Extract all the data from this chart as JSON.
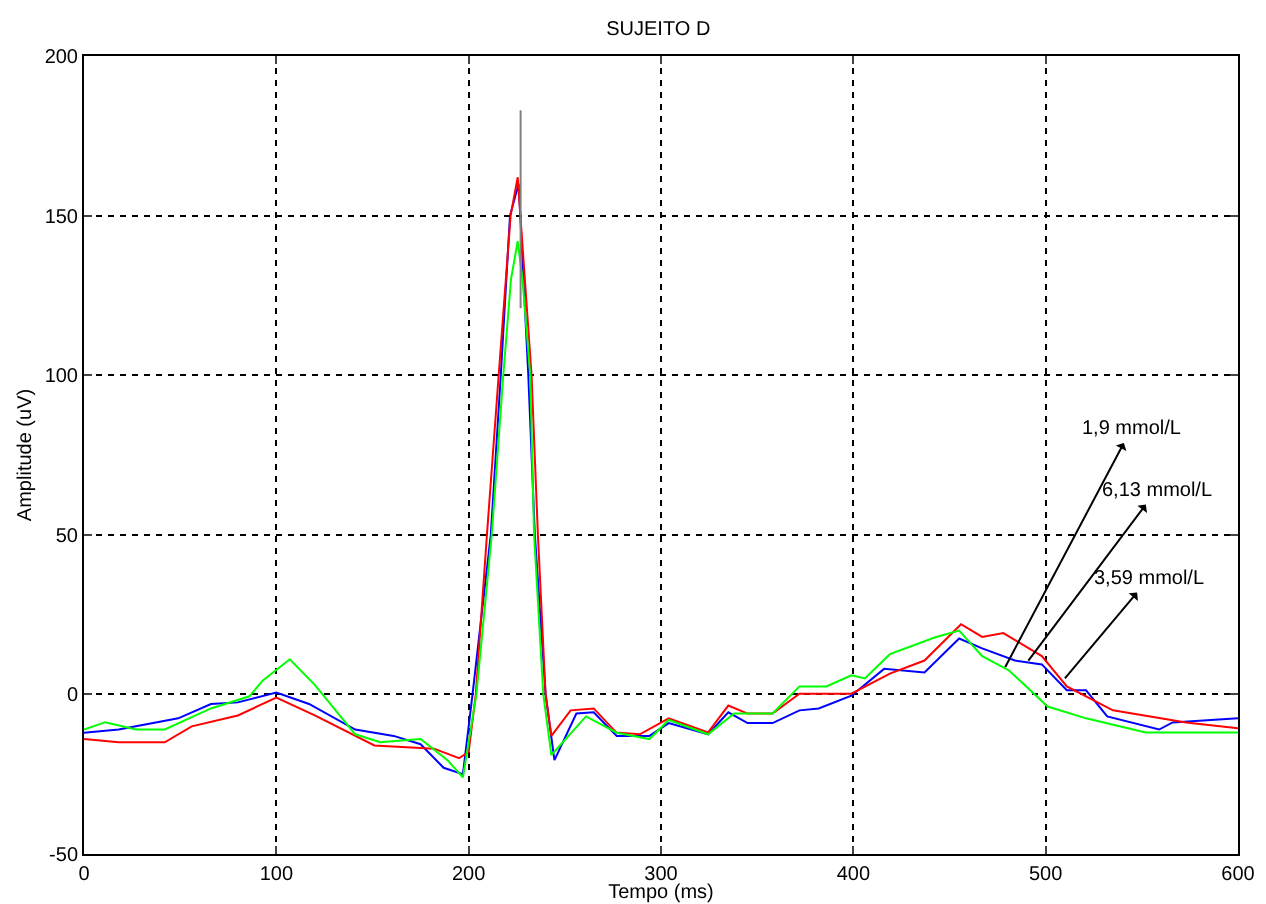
{
  "chart_data": {
    "type": "line",
    "title": "SUJEITO D",
    "xlabel": "Tempo (ms)",
    "ylabel": "Amplitude (uV)",
    "xlim": [
      0,
      600
    ],
    "xticks": [
      0,
      100,
      200,
      300,
      400,
      500,
      600
    ],
    "ylim": [
      -50,
      200
    ],
    "yticks": [
      -50,
      0,
      50,
      100,
      150,
      200
    ],
    "grid": true,
    "line_style": "solid",
    "marker": "none",
    "series": [
      {
        "color": "#0000ff",
        "x": [
          0,
          18,
          49,
          66,
          80,
          100,
          117,
          141,
          161,
          175,
          187,
          197,
          202,
          211.5,
          216.7,
          221.5,
          226,
          231,
          234.4,
          240,
          244.6,
          256,
          265,
          277,
          294,
          304,
          324.5,
          335,
          345,
          358,
          372,
          382,
          399,
          416,
          437,
          455,
          467,
          484,
          498,
          511,
          521,
          532,
          559,
          566,
          600
        ],
        "values": [
          -12,
          -11,
          -7.5,
          -3,
          -2.5,
          0.6,
          -3,
          -11,
          -13,
          -15.6,
          -23,
          -25,
          0,
          50,
          100,
          150,
          160,
          100,
          50,
          0,
          -20.6,
          -6,
          -5.6,
          -13,
          -13,
          -9,
          -12.5,
          -5.6,
          -9,
          -9,
          -5,
          -4.4,
          -0.4,
          8,
          6.9,
          17.5,
          14.4,
          10.6,
          9.4,
          1.3,
          1.3,
          -6.9,
          -11,
          -8.8,
          -7.5
        ]
      },
      {
        "color": "#ff0000",
        "x": [
          0,
          18,
          42,
          56,
          80,
          100,
          120,
          151,
          182,
          195,
          200,
          203.7,
          209.5,
          215.6,
          221.8,
          225.5,
          232.7,
          236,
          240,
          243,
          253,
          265,
          276.7,
          289,
          304,
          324.5,
          335,
          345,
          358,
          372,
          399,
          419,
          437,
          456,
          467,
          478,
          498,
          511,
          535,
          573,
          600
        ],
        "values": [
          -14,
          -15,
          -15,
          -10,
          -6.6,
          -1,
          -6.6,
          -16,
          -17,
          -20,
          -18,
          0,
          50,
          100,
          150,
          162,
          100,
          50,
          0,
          -13,
          -5,
          -4.4,
          -11.9,
          -12.5,
          -7.5,
          -11.9,
          -3.5,
          -6,
          -6,
          0.2,
          0.2,
          6.5,
          10.6,
          22,
          18,
          19.2,
          12,
          2.5,
          -5,
          -8.8,
          -10.6
        ]
      },
      {
        "color": "#00ff00",
        "x": [
          0,
          11,
          27,
          42,
          66,
          86,
          93,
          107,
          120,
          141,
          154,
          175,
          189,
          197,
          204,
          212,
          218,
          222,
          225.5,
          228,
          232,
          234,
          238.8,
          243,
          261,
          277,
          294,
          304,
          324.5,
          338,
          358,
          372,
          386,
          399,
          406,
          419,
          443,
          455,
          467,
          481,
          501,
          521,
          552,
          600
        ],
        "values": [
          -11,
          -8.7,
          -11,
          -11,
          -4.4,
          -0.6,
          4.4,
          11,
          3,
          -12.5,
          -15,
          -14,
          -20.6,
          -26,
          0,
          50,
          100,
          130,
          142,
          130,
          100,
          50,
          0,
          -19,
          -6.9,
          -12,
          -14,
          -8,
          -12.5,
          -6,
          -6,
          2.5,
          2.5,
          6,
          5,
          12.6,
          18,
          20,
          12,
          7.5,
          -3.8,
          -7.5,
          -11.9,
          -11.9
        ]
      },
      {
        "color": "#808080",
        "x": [
          227,
          227
        ],
        "values": [
          121,
          183
        ]
      }
    ],
    "annotations": [
      {
        "text": "1,9 mmol/L",
        "x": 479,
        "y": 8.6
      },
      {
        "text": "6,13 mmol/L",
        "x": 491,
        "y": 10.6
      },
      {
        "text": "3,59 mmol/L",
        "x": 510,
        "y": 5
      }
    ]
  }
}
